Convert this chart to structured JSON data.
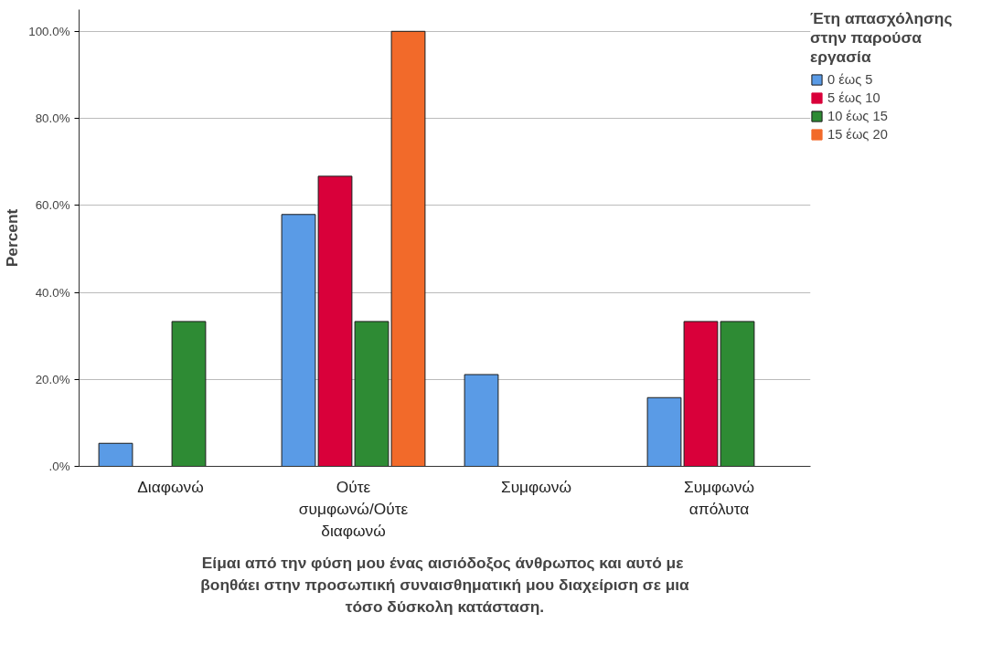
{
  "chart_data": {
    "type": "bar",
    "xlabel": "Είμαι από την φύση μου ένας αισιόδοξος άνθρωπος  και αυτό με βοηθάει στην προσωπική συναισθηματική μου διαχείριση σε μια τόσο δύσκολη κατάσταση.",
    "ylabel": "Percent",
    "legend_title": "Έτη απασχόλησης στην παρούσα εργασία",
    "categories": [
      "Διαφωνώ",
      "Ούτε συμφωνώ/Ούτε διαφωνώ",
      "Συμφωνώ",
      "Συμφωνώ απόλυτα"
    ],
    "series": [
      {
        "name": "0 έως 5",
        "color": "#5a9be6",
        "values": [
          5.3,
          57.9,
          21.1,
          15.8
        ]
      },
      {
        "name": "5 έως 10",
        "color": "#d9003a",
        "values": [
          0,
          66.7,
          0,
          33.3
        ]
      },
      {
        "name": "10 έως 15",
        "color": "#2e8b34",
        "values": [
          33.3,
          33.3,
          0,
          33.3
        ]
      },
      {
        "name": "15 έως 20",
        "color": "#f26a2a",
        "values": [
          0,
          100,
          0,
          0
        ]
      }
    ],
    "ylim": [
      0,
      105
    ],
    "yticks": [
      {
        "value": 0,
        "label": ".0%"
      },
      {
        "value": 20,
        "label": "20.0%"
      },
      {
        "value": 40,
        "label": "40.0%"
      },
      {
        "value": 60,
        "label": "60.0%"
      },
      {
        "value": 80,
        "label": "80.0%"
      },
      {
        "value": 100,
        "label": "100.0%"
      }
    ],
    "grid": "y",
    "legend": "top right"
  }
}
